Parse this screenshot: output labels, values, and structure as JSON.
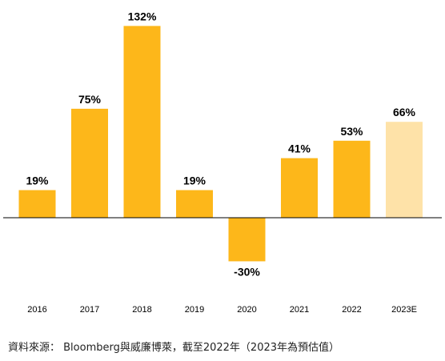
{
  "chart_data": {
    "type": "bar",
    "categories": [
      "2016",
      "2017",
      "2018",
      "2019",
      "2020",
      "2021",
      "2022",
      "2023E"
    ],
    "values": [
      19,
      75,
      132,
      19,
      -30,
      41,
      53,
      66
    ],
    "value_labels": [
      "19%",
      "75%",
      "132%",
      "19%",
      "-30%",
      "41%",
      "53%",
      "66%"
    ],
    "estimated": [
      false,
      false,
      false,
      false,
      false,
      false,
      false,
      true
    ],
    "title": "",
    "xlabel": "",
    "ylabel": "",
    "ylim": [
      -35,
      140
    ],
    "grid": false,
    "legend": "none",
    "colors": {
      "actual": "#FDB71A",
      "estimate": "#FEE2A8",
      "axis": "#000000"
    }
  },
  "source_note": "資料來源： Bloomberg與威廉博萊，截至2022年（2023年為預估值）"
}
